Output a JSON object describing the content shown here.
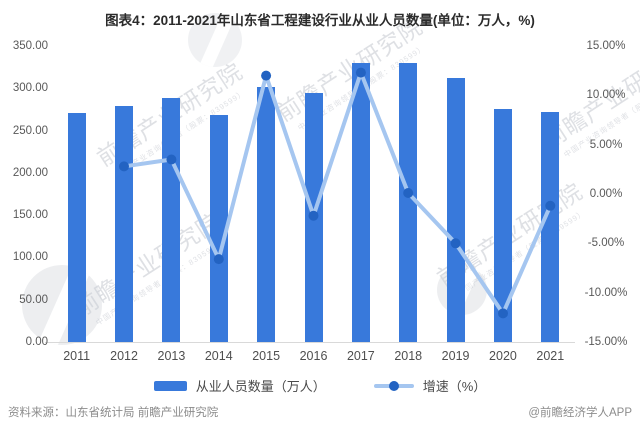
{
  "title": "图表4：2011-2021年山东省工程建设行业从业人员数量(单位：万人，%)",
  "chart_data": {
    "type": "bar",
    "combo": "bar+line",
    "title": "图表4：2011-2021年山东省工程建设行业从业人员数量(单位：万人，%)",
    "categories": [
      "2011",
      "2012",
      "2013",
      "2014",
      "2015",
      "2016",
      "2017",
      "2018",
      "2019",
      "2020",
      "2021"
    ],
    "series": [
      {
        "name": "从业人员数量（万人）",
        "type": "bar",
        "axis": "left",
        "values": [
          271,
          279,
          288,
          269,
          301,
          294,
          330,
          330,
          312,
          275,
          272
        ]
      },
      {
        "name": "增速（%）",
        "type": "line",
        "axis": "right",
        "values": [
          null,
          2.8,
          3.5,
          -6.6,
          12.0,
          -2.2,
          12.3,
          0.1,
          -5.0,
          -12.1,
          -1.2
        ]
      }
    ],
    "left_axis": {
      "min": 0,
      "max": 350,
      "step": 50,
      "tick_format": "0.00"
    },
    "right_axis": {
      "min": -15,
      "max": 15,
      "step": 5,
      "tick_format": "0.00%"
    },
    "grid": false,
    "legend_position": "bottom"
  },
  "legend": {
    "bar_label": "从业人员数量（万人）",
    "line_label": "增速（%）"
  },
  "footer": {
    "source": "资料来源：山东省统计局 前瞻产业研究院",
    "credit": "@前瞻经济学人APP"
  },
  "watermark": {
    "text": "前瞻产业研究院",
    "subtext": "中国产业咨询领导者（股票：839599）"
  },
  "colors": {
    "bar": "#3879DB",
    "line": "#A5C6F0",
    "dot": "#2363C2",
    "axis_text": "#595959",
    "title_text": "#2B2B2B",
    "axis_line": "#D9D9D9",
    "legend_text": "#4A4A4A",
    "footer_text": "#8C8C8C",
    "watermark": "#B3B7C0"
  }
}
